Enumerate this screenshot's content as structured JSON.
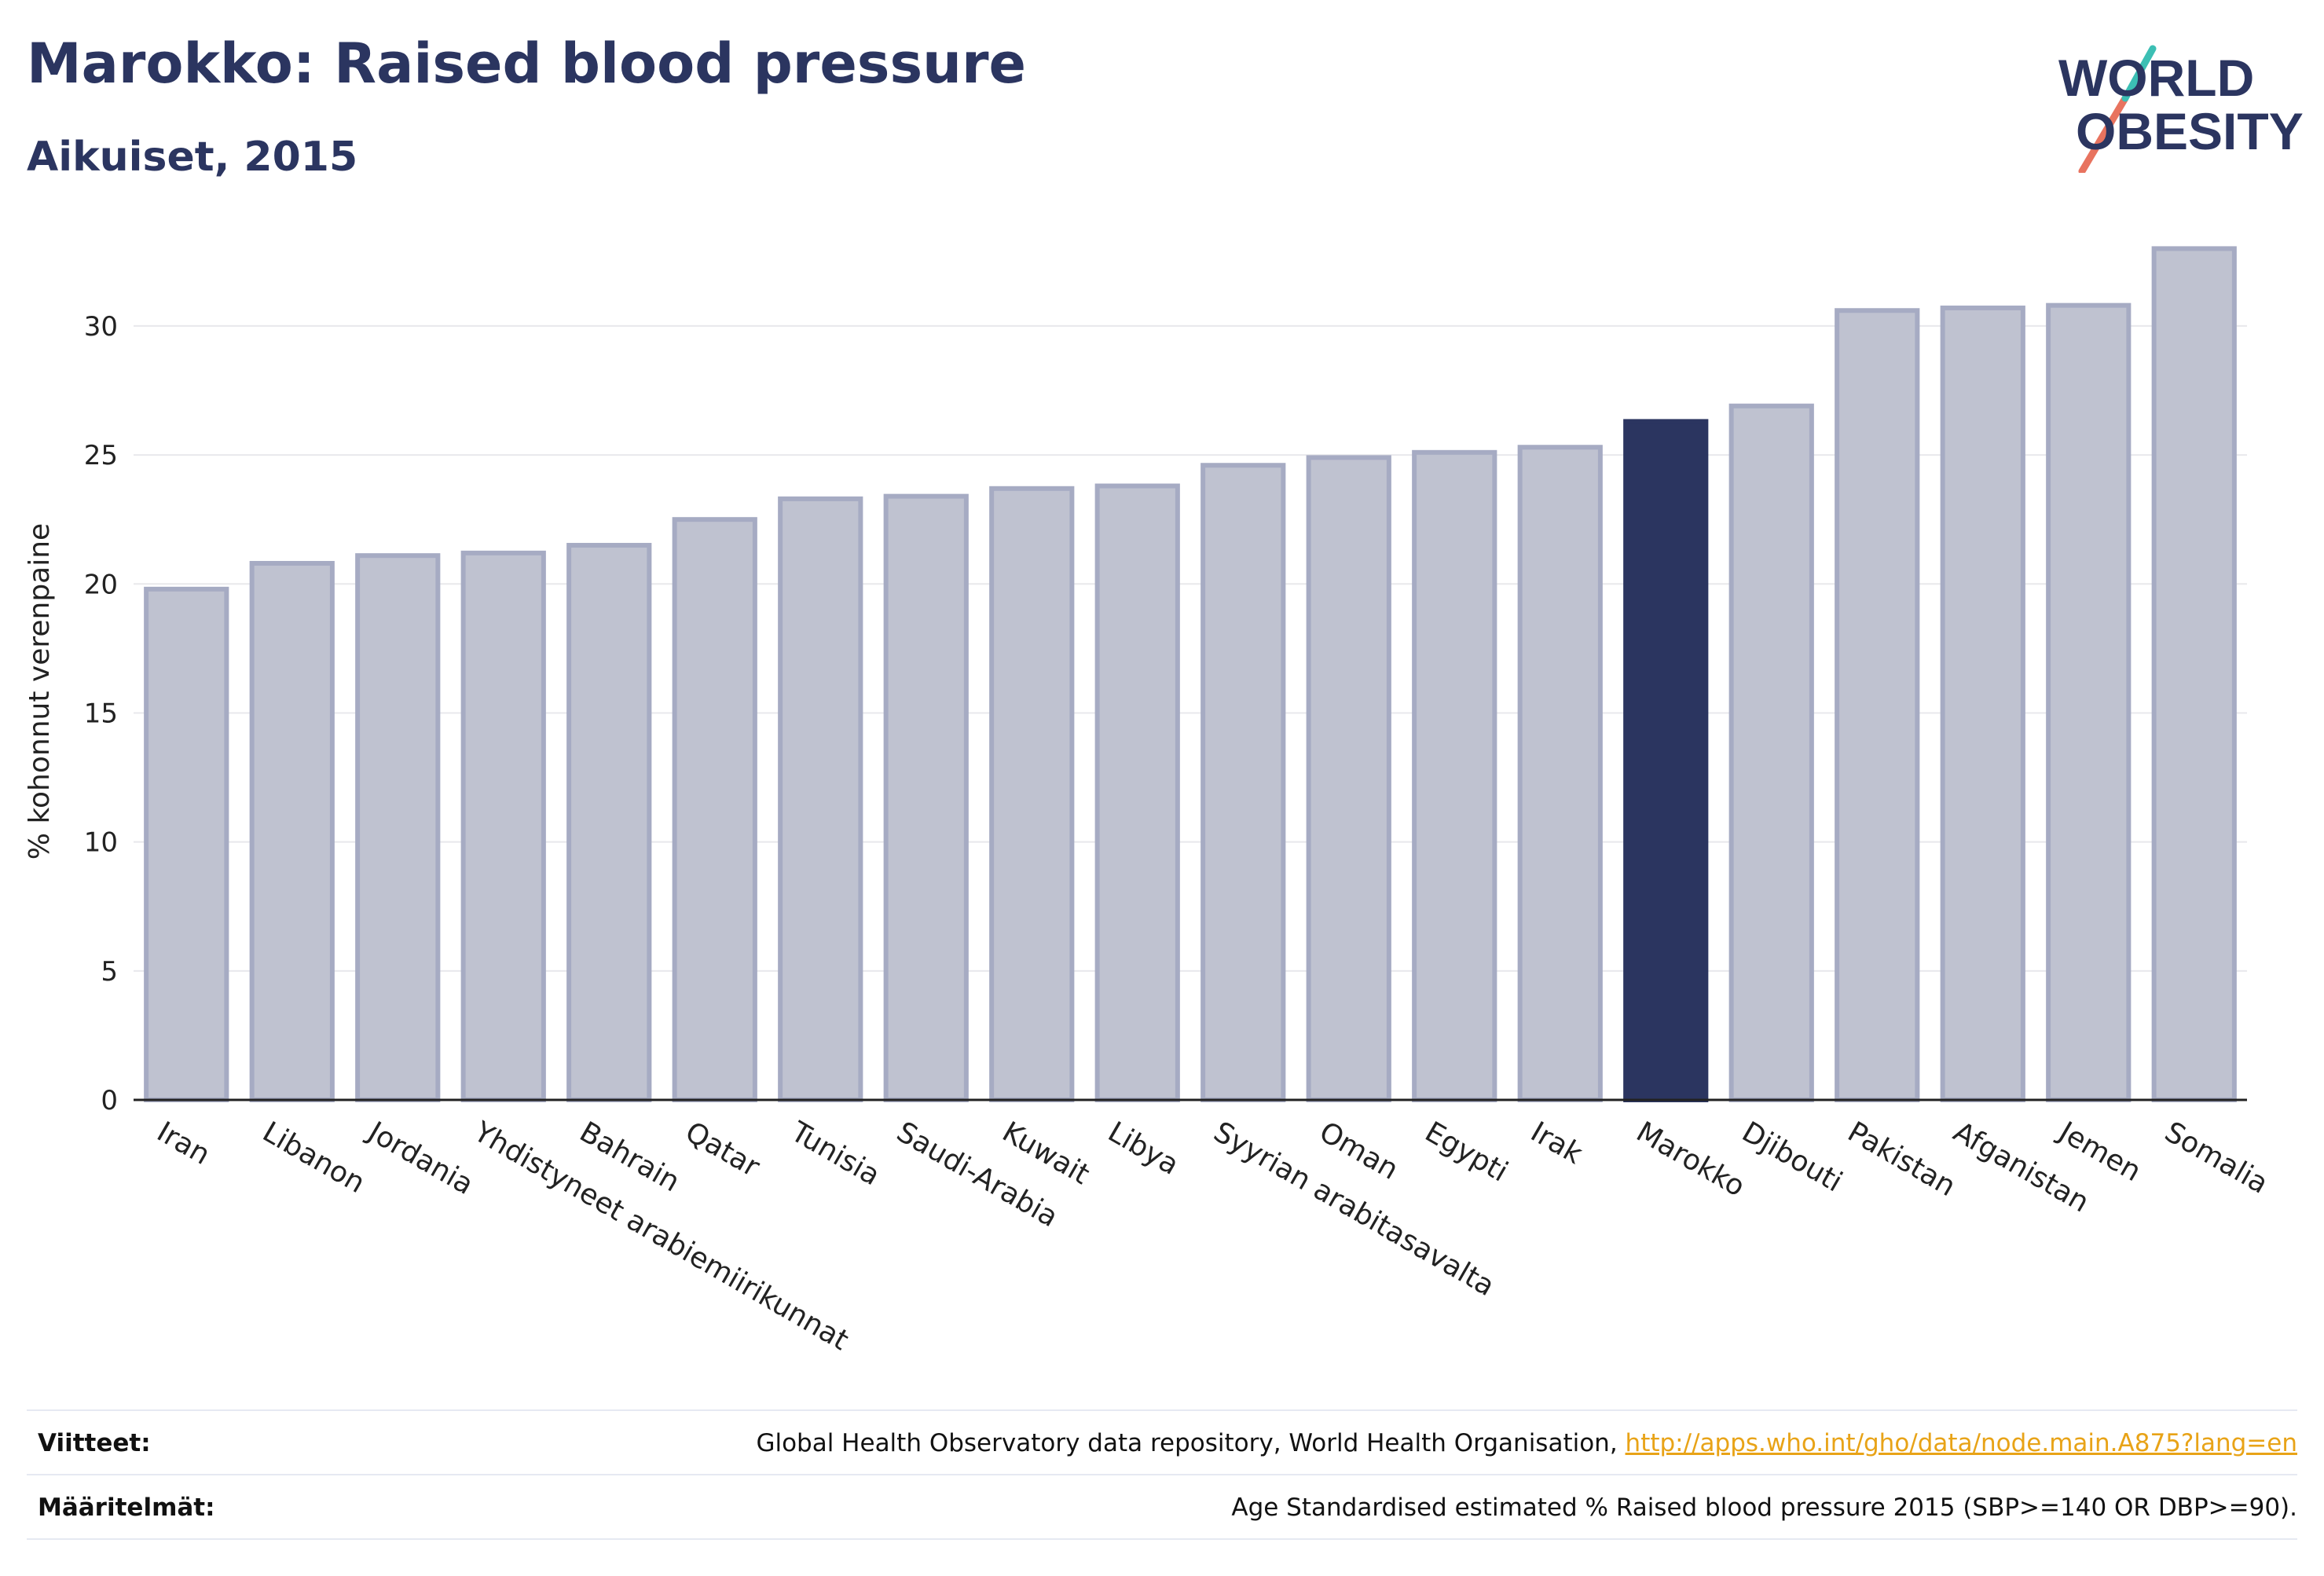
{
  "header": {
    "title": "Marokko: Raised blood pressure",
    "subtitle": "Aikuiset, 2015"
  },
  "logo": {
    "line1": "WORLD",
    "line2": "OBESITY",
    "colors": {
      "text": "#2b3560",
      "slash_coral": "#e8735f",
      "slash_teal": "#3cbfb4"
    }
  },
  "chart_data": {
    "type": "bar",
    "title": "Marokko: Raised blood pressure",
    "subtitle": "Aikuiset, 2015",
    "xlabel": "",
    "ylabel": "% kohonnut verenpaine",
    "ylim": [
      0,
      33.5
    ],
    "yticks": [
      0,
      5,
      10,
      15,
      20,
      25,
      30
    ],
    "grid": true,
    "legend": "none",
    "categories": [
      "Iran",
      "Libanon",
      "Jordania",
      "Yhdistyneet arabiemiirikunnat",
      "Bahrain",
      "Qatar",
      "Tunisia",
      "Saudi-Arabia",
      "Kuwait",
      "Libya",
      "Syyrian arabitasavalta",
      "Oman",
      "Egypti",
      "Irak",
      "Marokko",
      "Djibouti",
      "Pakistan",
      "Afganistan",
      "Jemen",
      "Somalia"
    ],
    "values": [
      19.8,
      20.8,
      21.1,
      21.2,
      21.5,
      22.5,
      23.3,
      23.4,
      23.7,
      23.8,
      24.6,
      24.9,
      25.1,
      25.3,
      26.3,
      26.9,
      30.6,
      30.7,
      30.8,
      33.0
    ],
    "highlight": "Marokko",
    "colors": {
      "bar": "#bfc2d0",
      "bar_edge": "#a6abc3",
      "highlight": "#2b3560",
      "axis": "#222222",
      "grid": "#e8e8ec"
    }
  },
  "footer": {
    "sources_label": "Viitteet:",
    "sources_text": "Global Health Observatory data repository, World Health Organisation,",
    "sources_link": "http://apps.who.int/gho/data/node.main.A875?lang=en",
    "definitions_label": "Määritelmät:",
    "definitions_text": "Age Standardised estimated % Raised blood pressure 2015 (SBP>=140 OR DBP>=90)."
  }
}
